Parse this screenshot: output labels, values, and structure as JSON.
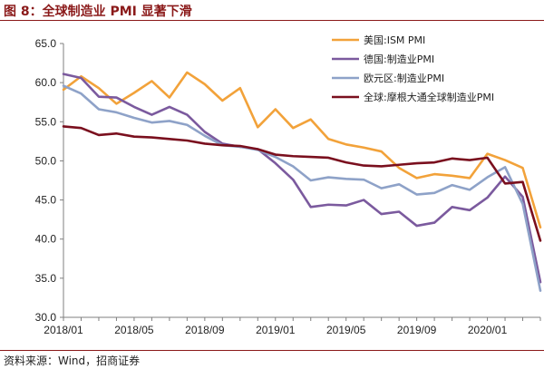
{
  "title": "图 8：全球制造业 PMI 显著下滑",
  "source": "资料来源：Wind，招商证券",
  "chart_data": {
    "type": "line",
    "x": [
      "2018/01",
      "2018/02",
      "2018/03",
      "2018/04",
      "2018/05",
      "2018/06",
      "2018/07",
      "2018/08",
      "2018/09",
      "2018/10",
      "2018/11",
      "2018/12",
      "2019/01",
      "2019/02",
      "2019/03",
      "2019/04",
      "2019/05",
      "2019/06",
      "2019/07",
      "2019/08",
      "2019/09",
      "2019/10",
      "2019/11",
      "2019/12",
      "2020/01",
      "2020/02",
      "2020/03",
      "2020/04"
    ],
    "x_tick_labels": [
      "2018/01",
      "2018/05",
      "2018/09",
      "2019/01",
      "2019/05",
      "2019/09",
      "2020/01"
    ],
    "ylim": [
      30.0,
      65.0
    ],
    "y_ticks": [
      "30.0",
      "35.0",
      "40.0",
      "45.0",
      "50.0",
      "55.0",
      "60.0",
      "65.0"
    ],
    "grid": false,
    "legend_position": "top-right",
    "series": [
      {
        "name": "美国:ISM PMI",
        "color": "#f2a23a",
        "values": [
          59.1,
          60.8,
          59.3,
          57.3,
          58.7,
          60.2,
          58.1,
          61.3,
          59.8,
          57.7,
          59.3,
          54.3,
          56.6,
          54.2,
          55.3,
          52.8,
          52.1,
          51.7,
          51.2,
          49.1,
          47.8,
          48.3,
          48.1,
          47.8,
          50.9,
          50.1,
          49.1,
          41.5
        ]
      },
      {
        "name": "德国:制造业PMI",
        "color": "#7b5a9e",
        "values": [
          61.1,
          60.6,
          58.2,
          58.1,
          56.9,
          55.9,
          56.9,
          55.9,
          53.7,
          52.2,
          51.8,
          51.5,
          49.7,
          47.6,
          44.1,
          44.4,
          44.3,
          45.0,
          43.2,
          43.5,
          41.7,
          42.1,
          44.1,
          43.7,
          45.3,
          48.0,
          45.4,
          34.5
        ]
      },
      {
        "name": "欧元区:制造业PMI",
        "color": "#8ea2c8",
        "values": [
          59.6,
          58.6,
          56.6,
          56.2,
          55.5,
          54.9,
          55.1,
          54.6,
          53.2,
          52.0,
          51.8,
          51.4,
          50.5,
          49.3,
          47.5,
          47.9,
          47.7,
          47.6,
          46.5,
          47.0,
          45.7,
          45.9,
          46.9,
          46.3,
          47.9,
          49.2,
          44.5,
          33.4
        ]
      },
      {
        "name": "全球:摩根大通全球制造业PMI",
        "color": "#7a0f1e",
        "values": [
          54.4,
          54.2,
          53.3,
          53.5,
          53.1,
          53.0,
          52.8,
          52.6,
          52.2,
          52.0,
          51.9,
          51.5,
          50.8,
          50.6,
          50.5,
          50.4,
          49.8,
          49.4,
          49.3,
          49.5,
          49.7,
          49.8,
          50.3,
          50.1,
          50.4,
          47.1,
          47.3,
          39.8
        ]
      }
    ]
  }
}
